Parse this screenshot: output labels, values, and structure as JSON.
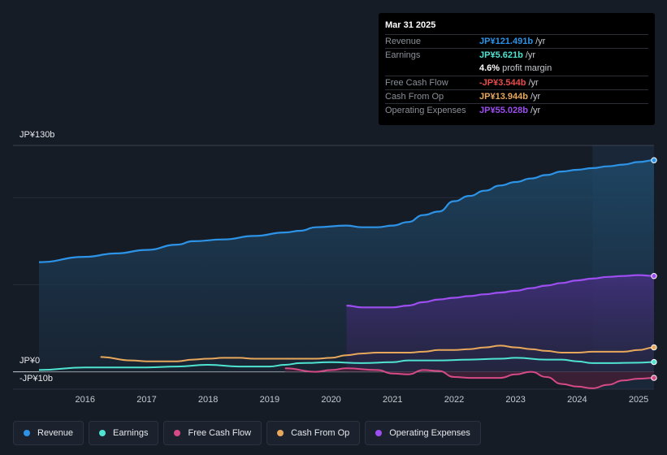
{
  "colors": {
    "revenue": "#2d93e6",
    "earnings": "#4fe3d2",
    "fcf": "#d64a86",
    "cfo": "#e8a85c",
    "opex": "#9d4ef0"
  },
  "y_labels": {
    "top": "JP¥130b",
    "zero": "JP¥0",
    "bottom": "-JP¥10b"
  },
  "tooltip": {
    "date": "Mar 31 2025",
    "rows": [
      {
        "label": "Revenue",
        "value": "JP¥121.491b",
        "unit": "/yr",
        "color": "#2d93e6"
      },
      {
        "label": "Earnings",
        "value": "JP¥5.621b",
        "unit": "/yr",
        "color": "#4fe3d2"
      },
      {
        "label": "",
        "value": "4.6%",
        "unit": "profit margin",
        "color": "#ffffff"
      },
      {
        "label": "Free Cash Flow",
        "value": "-JP¥3.544b",
        "unit": "/yr",
        "color": "#e84b4b"
      },
      {
        "label": "Cash From Op",
        "value": "JP¥13.944b",
        "unit": "/yr",
        "color": "#e8a85c"
      },
      {
        "label": "Operating Expenses",
        "value": "JP¥55.028b",
        "unit": "/yr",
        "color": "#9d4ef0"
      }
    ]
  },
  "legend": [
    {
      "label": "Revenue",
      "color": "#2d93e6"
    },
    {
      "label": "Earnings",
      "color": "#4fe3d2"
    },
    {
      "label": "Free Cash Flow",
      "color": "#d64a86"
    },
    {
      "label": "Cash From Op",
      "color": "#e8a85c"
    },
    {
      "label": "Operating Expenses",
      "color": "#9d4ef0"
    }
  ],
  "chart_data": {
    "type": "area",
    "title": "",
    "xlabel": "",
    "ylabel": "",
    "ylim": [
      -10,
      130
    ],
    "xlim": [
      2015.25,
      2025.25
    ],
    "x_ticks": [
      "2016",
      "2017",
      "2018",
      "2019",
      "2020",
      "2021",
      "2022",
      "2023",
      "2024",
      "2025"
    ],
    "highlight_from": 2024.25,
    "series": [
      {
        "name": "Revenue",
        "key": "revenue",
        "x": [
          2015.25,
          2016.0,
          2016.5,
          2017.0,
          2017.5,
          2017.75,
          2018.25,
          2018.75,
          2019.25,
          2019.5,
          2019.75,
          2020.25,
          2020.5,
          2020.75,
          2021.0,
          2021.25,
          2021.5,
          2021.75,
          2022.0,
          2022.25,
          2022.5,
          2022.75,
          2023.0,
          2023.25,
          2023.5,
          2023.75,
          2024.0,
          2024.25,
          2024.5,
          2024.75,
          2025.0,
          2025.25
        ],
        "values": [
          63,
          66,
          68,
          70,
          73,
          75,
          76,
          78,
          80,
          81,
          83,
          84,
          83,
          83,
          84,
          86,
          90,
          92,
          98,
          101,
          104,
          107,
          109,
          111,
          113,
          115,
          116,
          117,
          118,
          119,
          120.5,
          121.5
        ]
      },
      {
        "name": "Earnings",
        "key": "earnings",
        "x": [
          2015.25,
          2016.0,
          2016.5,
          2017.0,
          2017.5,
          2018.0,
          2018.5,
          2019.0,
          2019.25,
          2019.5,
          2020.0,
          2020.5,
          2021.0,
          2021.25,
          2021.75,
          2022.25,
          2022.75,
          2023.0,
          2023.5,
          2023.75,
          2024.0,
          2024.25,
          2024.5,
          2025.0,
          2025.25
        ],
        "values": [
          1,
          2.5,
          2.5,
          2.5,
          3,
          4,
          3,
          3,
          4,
          5,
          5.5,
          5,
          5.5,
          6.5,
          6.5,
          7,
          7.5,
          8,
          7,
          7,
          6,
          5,
          5,
          5.2,
          5.6
        ]
      },
      {
        "name": "Free Cash Flow",
        "key": "fcf",
        "x": [
          2019.25,
          2019.75,
          2020.0,
          2020.25,
          2020.75,
          2021.0,
          2021.25,
          2021.5,
          2021.75,
          2022.0,
          2022.25,
          2022.75,
          2023.0,
          2023.25,
          2023.5,
          2023.75,
          2024.0,
          2024.25,
          2024.5,
          2024.75,
          2025.0,
          2025.25
        ],
        "values": [
          2,
          0,
          1,
          2,
          1,
          -1,
          -1.5,
          1,
          0.5,
          -3,
          -3.5,
          -3.5,
          -1.5,
          0,
          -3,
          -7,
          -8.5,
          -9.5,
          -7.5,
          -5,
          -4,
          -3.5
        ]
      },
      {
        "name": "Cash From Op",
        "key": "cfo",
        "x": [
          2016.25,
          2016.75,
          2017.0,
          2017.25,
          2017.5,
          2017.75,
          2018.0,
          2018.25,
          2018.5,
          2018.75,
          2019.0,
          2019.25,
          2019.5,
          2019.75,
          2020.0,
          2020.25,
          2020.5,
          2020.75,
          2021.0,
          2021.25,
          2021.5,
          2021.75,
          2022.0,
          2022.25,
          2022.5,
          2022.75,
          2023.0,
          2023.25,
          2023.5,
          2023.75,
          2024.0,
          2024.25,
          2024.5,
          2024.75,
          2025.0,
          2025.25
        ],
        "values": [
          8.5,
          6.5,
          6,
          6,
          6,
          7,
          7.5,
          8,
          8,
          7.5,
          7.5,
          7.5,
          7.5,
          7.5,
          8,
          9.5,
          10.5,
          11,
          11,
          11,
          11.5,
          12.5,
          12.5,
          13,
          14,
          15,
          14,
          13,
          12,
          11,
          11,
          11.5,
          11.5,
          11.5,
          12.5,
          14
        ]
      },
      {
        "name": "Operating Expenses",
        "key": "opex",
        "x": [
          2020.25,
          2020.5,
          2020.75,
          2021.0,
          2021.25,
          2021.5,
          2021.75,
          2022.0,
          2022.25,
          2022.5,
          2022.75,
          2023.0,
          2023.25,
          2023.5,
          2023.75,
          2024.0,
          2024.25,
          2024.5,
          2024.75,
          2025.0,
          2025.25
        ],
        "values": [
          38,
          37,
          37,
          37,
          38,
          40,
          41.5,
          42.5,
          43.5,
          44.5,
          45.5,
          46.5,
          48,
          49.5,
          51,
          52.5,
          53.5,
          54.5,
          55,
          55.5,
          55
        ]
      }
    ]
  }
}
